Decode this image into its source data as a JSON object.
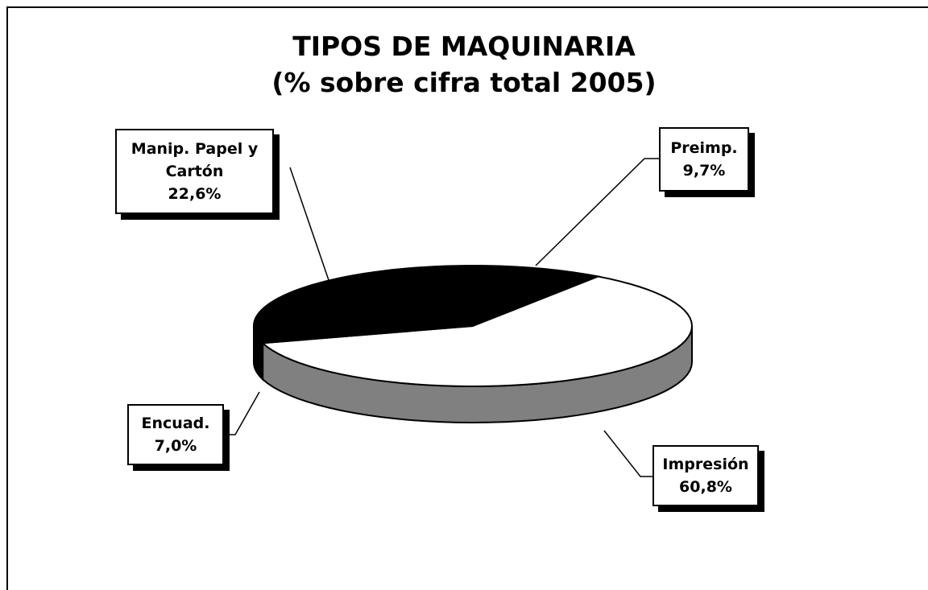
{
  "chart_data": {
    "type": "pie3d",
    "title": "TIPOS DE MAQUINARIA",
    "subtitle": "(% sobre cifra total 2005)",
    "categories": [
      "Preimp.",
      "Impresión",
      "Encuad.",
      "Manip. Papel y Cartón"
    ],
    "values": [
      9.7,
      60.8,
      7.0,
      22.6
    ],
    "value_labels": [
      "9,7%",
      "60,8%",
      "7,0%",
      "22,6%"
    ],
    "colors": [
      "#000000",
      "#ffffff",
      "#000000",
      "#000000"
    ]
  }
}
